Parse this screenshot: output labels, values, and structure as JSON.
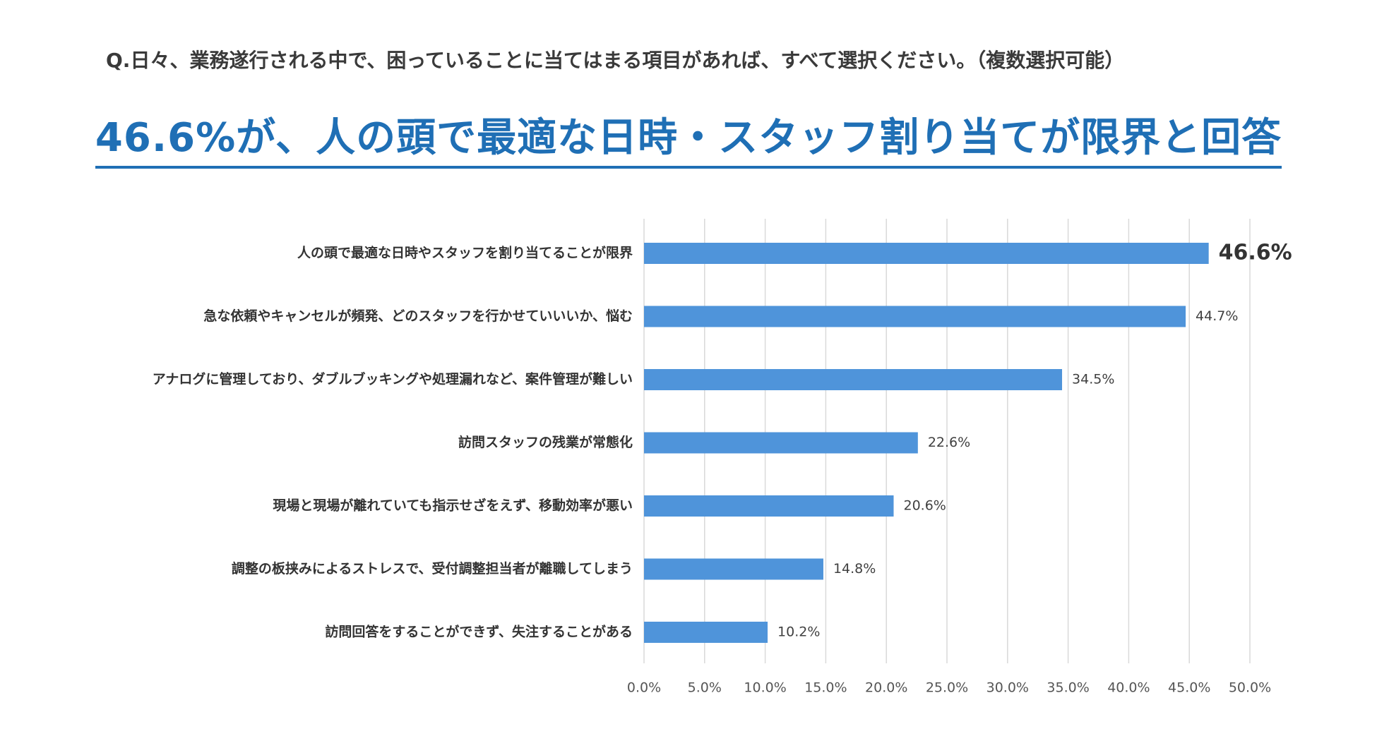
{
  "question": "Q.日々、業務遂行される中で、困っていることに当てはまる項目があれば、すべて選択ください。（複数選択可能）",
  "headline": "46.6%が、人の頭で最適な日時・スタッフ割り当てが限界と回答",
  "colors": {
    "bar": "#4f94da",
    "headline": "#1f6fb5",
    "grid": "#d9d9d9"
  },
  "chart_data": {
    "type": "bar",
    "orientation": "horizontal",
    "categories": [
      "人の頭で最適な日時やスタッフを割り当てることが限界",
      "急な依頼やキャンセルが頻発、どのスタッフを行かせていいいか、悩む",
      "アナログに管理しており、ダブルブッキングや処理漏れなど、案件管理が難しい",
      "訪問スタッフの残業が常態化",
      "現場と現場が離れていても指示せざをえず、移動効率が悪い",
      "調整の板挟みによるストレスで、受付調整担当者が離職してしまう",
      "訪問回答をすることができず、失注することがある"
    ],
    "values": [
      46.6,
      44.7,
      34.5,
      22.6,
      20.6,
      14.8,
      10.2
    ],
    "value_labels": [
      "46.6%",
      "44.7%",
      "34.5%",
      "22.6%",
      "20.6%",
      "14.8%",
      "10.2%"
    ],
    "xlim": [
      0,
      50
    ],
    "xticks": [
      0,
      5,
      10,
      15,
      20,
      25,
      30,
      35,
      40,
      45,
      50
    ],
    "xtick_labels": [
      "0.0%",
      "5.0%",
      "10.0%",
      "15.0%",
      "20.0%",
      "25.0%",
      "30.0%",
      "35.0%",
      "40.0%",
      "45.0%",
      "50.0%"
    ],
    "grid": true,
    "highlight_index": 0
  }
}
